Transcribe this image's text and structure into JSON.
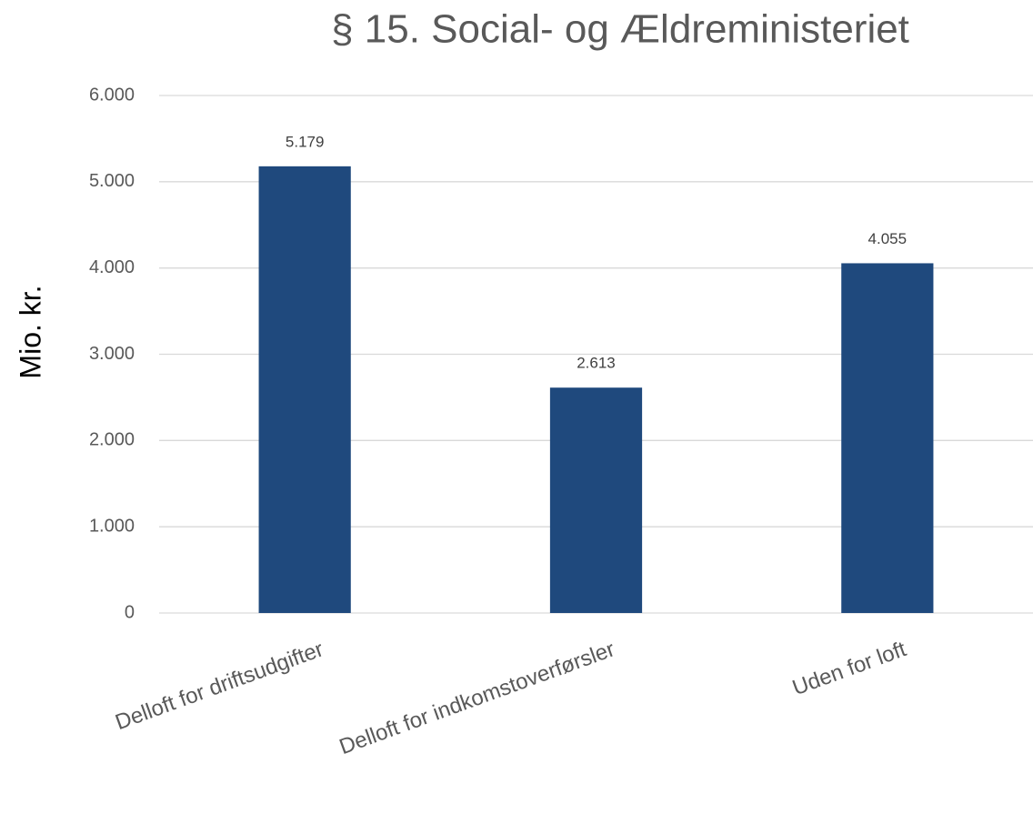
{
  "chart_data": {
    "type": "bar",
    "title": "§ 15. Social- og Ældreministeriet",
    "y_label": "Mio. kr.",
    "categories": [
      "Delloft for driftsudgifter",
      "Delloft for indkomstoverførsler",
      "Uden for loft"
    ],
    "values": [
      5179,
      2613,
      4055
    ],
    "value_labels": [
      "5.179",
      "2.613",
      "4.055"
    ],
    "color": "#1f497d",
    "ylim": [
      0,
      6000
    ],
    "yticks": [
      0,
      {
        "value": 1000,
        "label": "1.000"
      },
      {
        "value": 2000,
        "label": "2.000"
      },
      {
        "value": 3000,
        "label": "3.000"
      },
      {
        "value": 4000,
        "label": "4.000"
      },
      {
        "value": 5000,
        "label": "5.000"
      },
      {
        "value": 6000,
        "label": "6.000"
      }
    ],
    "grid": true
  }
}
